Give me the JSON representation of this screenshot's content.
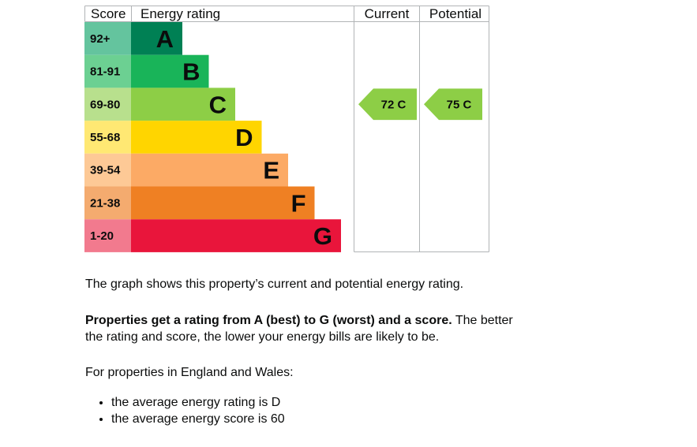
{
  "chart_data": {
    "type": "bar",
    "headers": {
      "score": "Score",
      "rating": "Energy rating",
      "current": "Current",
      "potential": "Potential"
    },
    "bands": [
      {
        "letter": "A",
        "range": "92+",
        "color": "#008054",
        "score_color": "#64c49e"
      },
      {
        "letter": "B",
        "range": "81-91",
        "color": "#19b459",
        "score_color": "#6cd092"
      },
      {
        "letter": "C",
        "range": "69-80",
        "color": "#8dce46",
        "score_color": "#b8e08d"
      },
      {
        "letter": "D",
        "range": "55-68",
        "color": "#ffd500",
        "score_color": "#ffe873"
      },
      {
        "letter": "E",
        "range": "39-54",
        "color": "#fcaa65",
        "score_color": "#fdc996"
      },
      {
        "letter": "F",
        "range": "21-38",
        "color": "#ef8023",
        "score_color": "#f4ab6f"
      },
      {
        "letter": "G",
        "range": "1-20",
        "color": "#e9153b",
        "score_color": "#f27a8e"
      }
    ],
    "current": {
      "score": 72,
      "band": "C",
      "label": "72 C"
    },
    "potential": {
      "score": 75,
      "band": "C",
      "label": "75 C"
    }
  },
  "text": {
    "intro": "The graph shows this property’s current and potential energy rating.",
    "rating_bold": "Properties get a rating from A (best) to G (worst) and a score.",
    "rating_rest": " The better the rating and score, the lower your energy bills are likely to be.",
    "regional_intro": "For properties in England and Wales:",
    "bullets": [
      "the average energy rating is D",
      "the average energy score is 60"
    ]
  }
}
